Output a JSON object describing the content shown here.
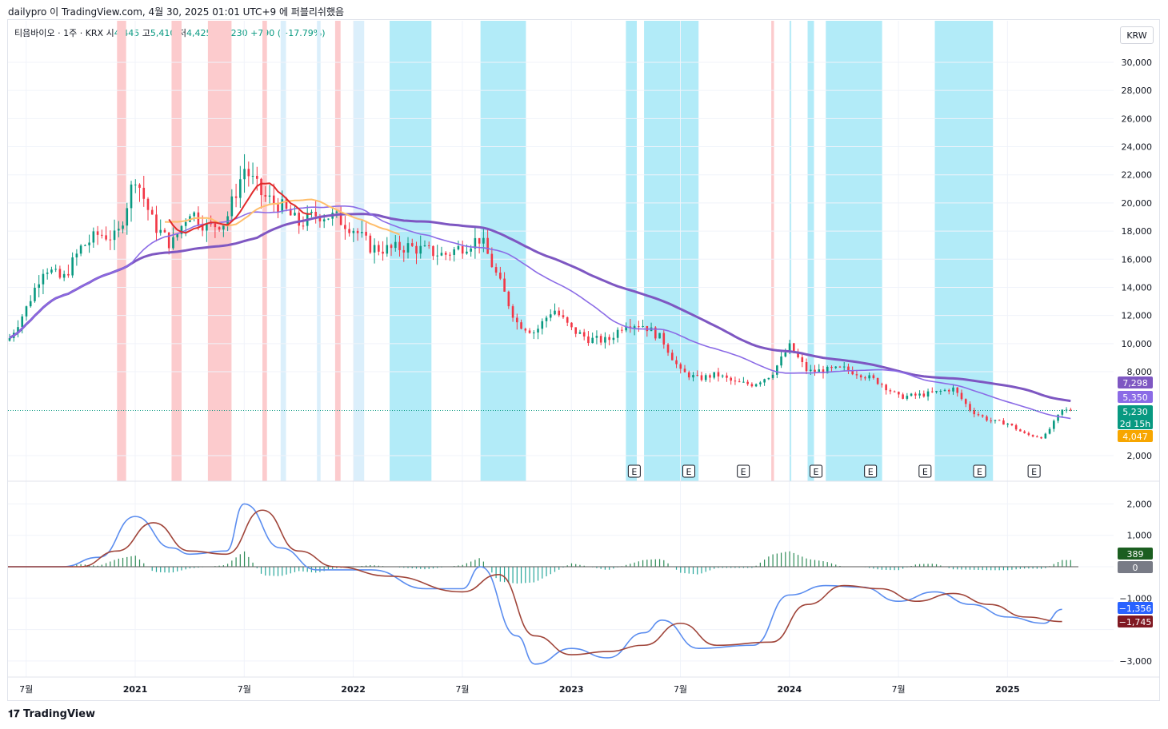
{
  "header": {
    "caption": "dailypro 이 TradingView.com, 4월 30, 2025 01:01 UTC+9 에 퍼블리쉬했음",
    "symbol": "티움바이오 · 1주 · KRX",
    "open_label": "시",
    "open": "4,445",
    "high_label": "고",
    "high": "5,410",
    "low_label": "저",
    "low": "4,425",
    "close_label": "종",
    "close": "5,230",
    "change": "+790 (+17.79%)",
    "currency_button": "KRW"
  },
  "footer": {
    "logo": "TradingView"
  },
  "colors": {
    "up": "#089981",
    "down": "#f23645",
    "bg_red": "#fccbcd",
    "bg_cyan": "#b2ebf8",
    "bg_light": "#dbeffb",
    "ma_purple": "#8b6be6",
    "ma_orange": "#ffbe6b",
    "macd_blue": "#5b8def",
    "signal": "#a0453a"
  },
  "chart_data": [
    {
      "type": "candlestick",
      "title": "티움바이오 · 1주 · KRX",
      "y_ticks": [
        "2,000",
        "8,000",
        "10,000",
        "12,000",
        "14,000",
        "16,000",
        "18,000",
        "20,000",
        "22,000",
        "24,000",
        "26,000",
        "28,000",
        "30,000"
      ],
      "x_ticks": [
        "7월",
        "2021",
        "7월",
        "2022",
        "7월",
        "2023",
        "7월",
        "2024",
        "7월",
        "2025"
      ],
      "ohlc_last": {
        "open": 4445,
        "high": 5410,
        "low": 4425,
        "close": 5230
      },
      "price_path": [
        [
          "2020-06",
          10200
        ],
        [
          "2020-07",
          12500
        ],
        [
          "2020-08",
          15500
        ],
        [
          "2020-09",
          14500
        ],
        [
          "2020-10",
          16800
        ],
        [
          "2020-11",
          17800
        ],
        [
          "2020-12",
          17500
        ],
        [
          "2021-01",
          22000
        ],
        [
          "2021-02",
          18500
        ],
        [
          "2021-03",
          17000
        ],
        [
          "2021-04",
          19500
        ],
        [
          "2021-05",
          18200
        ],
        [
          "2021-06",
          18800
        ],
        [
          "2021-07",
          22500
        ],
        [
          "2021-08",
          20500
        ],
        [
          "2021-09",
          19800
        ],
        [
          "2021-10",
          18500
        ],
        [
          "2021-11",
          19200
        ],
        [
          "2021-12",
          19000
        ],
        [
          "2022-01",
          18200
        ],
        [
          "2022-02",
          16800
        ],
        [
          "2022-03",
          16700
        ],
        [
          "2022-04",
          16900
        ],
        [
          "2022-05",
          16600
        ],
        [
          "2022-06",
          16300
        ],
        [
          "2022-07",
          16900
        ],
        [
          "2022-08",
          17500
        ],
        [
          "2022-09",
          14500
        ],
        [
          "2022-10",
          11500
        ],
        [
          "2022-11",
          10800
        ],
        [
          "2022-12",
          12500
        ],
        [
          "2023-01",
          11000
        ],
        [
          "2023-02",
          10300
        ],
        [
          "2023-03",
          10200
        ],
        [
          "2023-04",
          11500
        ],
        [
          "2023-05",
          11300
        ],
        [
          "2023-06",
          10300
        ],
        [
          "2023-07",
          8000
        ],
        [
          "2023-08",
          7500
        ],
        [
          "2023-09",
          7800
        ],
        [
          "2023-10",
          7200
        ],
        [
          "2023-11",
          7100
        ],
        [
          "2023-12",
          7800
        ],
        [
          "2024-01",
          9800
        ],
        [
          "2024-02",
          8000
        ],
        [
          "2024-03",
          8100
        ],
        [
          "2024-04",
          8200
        ],
        [
          "2024-05",
          7800
        ],
        [
          "2024-06",
          7200
        ],
        [
          "2024-07",
          6200
        ],
        [
          "2024-08",
          6300
        ],
        [
          "2024-09",
          6500
        ],
        [
          "2024-10",
          6800
        ],
        [
          "2024-11",
          5200
        ],
        [
          "2024-12",
          4500
        ],
        [
          "2025-01",
          4300
        ],
        [
          "2025-02",
          3500
        ],
        [
          "2025-03",
          3300
        ],
        [
          "2025-04",
          5230
        ]
      ],
      "price_tags": [
        {
          "value": "7,298",
          "color": "#7e57c2"
        },
        {
          "value": "5,350",
          "color": "#8b6be6"
        },
        {
          "value": "5,230",
          "color": "#089981",
          "sub": "2d 15h"
        },
        {
          "value": "4,047",
          "color": "#f7a600"
        }
      ],
      "earnings_marker": "E"
    },
    {
      "type": "macd",
      "y_ticks": [
        "2,000",
        "1,000",
        "0",
        "−1,000",
        "−2,000",
        "−3,000"
      ],
      "values": {
        "histogram": "389",
        "zero": "0",
        "macd": "−1,356",
        "signal": "−1,745"
      },
      "macd_path": [
        [
          "2020-06",
          0
        ],
        [
          "2020-09",
          0
        ],
        [
          "2020-11",
          300
        ],
        [
          "2021-01",
          1600
        ],
        [
          "2021-03",
          600
        ],
        [
          "2021-04",
          400
        ],
        [
          "2021-06",
          500
        ],
        [
          "2021-07",
          2000
        ],
        [
          "2021-09",
          600
        ],
        [
          "2021-11",
          -100
        ],
        [
          "2022-02",
          -100
        ],
        [
          "2022-05",
          -700
        ],
        [
          "2022-07",
          -700
        ],
        [
          "2022-08",
          0
        ],
        [
          "2022-10",
          -2200
        ],
        [
          "2022-11",
          -3100
        ],
        [
          "2023-01",
          -2600
        ],
        [
          "2023-03",
          -2900
        ],
        [
          "2023-05",
          -2100
        ],
        [
          "2023-06",
          -1700
        ],
        [
          "2023-08",
          -2600
        ],
        [
          "2023-11",
          -2500
        ],
        [
          "2024-01",
          -900
        ],
        [
          "2024-03",
          -600
        ],
        [
          "2024-05",
          -650
        ],
        [
          "2024-07",
          -1100
        ],
        [
          "2024-09",
          -800
        ],
        [
          "2024-11",
          -1200
        ],
        [
          "2025-01",
          -1600
        ],
        [
          "2025-03",
          -1800
        ],
        [
          "2025-04",
          -1356
        ]
      ],
      "signal_path": [
        [
          "2020-06",
          0
        ],
        [
          "2020-10",
          0
        ],
        [
          "2020-12",
          500
        ],
        [
          "2021-02",
          1400
        ],
        [
          "2021-04",
          500
        ],
        [
          "2021-06",
          400
        ],
        [
          "2021-08",
          1800
        ],
        [
          "2021-10",
          500
        ],
        [
          "2021-12",
          0
        ],
        [
          "2022-03",
          -300
        ],
        [
          "2022-07",
          -800
        ],
        [
          "2022-09",
          -250
        ],
        [
          "2022-11",
          -2200
        ],
        [
          "2023-01",
          -2800
        ],
        [
          "2023-03",
          -2700
        ],
        [
          "2023-05",
          -2500
        ],
        [
          "2023-07",
          -1800
        ],
        [
          "2023-09",
          -2500
        ],
        [
          "2023-12",
          -2400
        ],
        [
          "2024-02",
          -1200
        ],
        [
          "2024-04",
          -600
        ],
        [
          "2024-06",
          -700
        ],
        [
          "2024-08",
          -1100
        ],
        [
          "2024-10",
          -850
        ],
        [
          "2024-12",
          -1200
        ],
        [
          "2025-02",
          -1600
        ],
        [
          "2025-04",
          -1745
        ]
      ]
    }
  ]
}
